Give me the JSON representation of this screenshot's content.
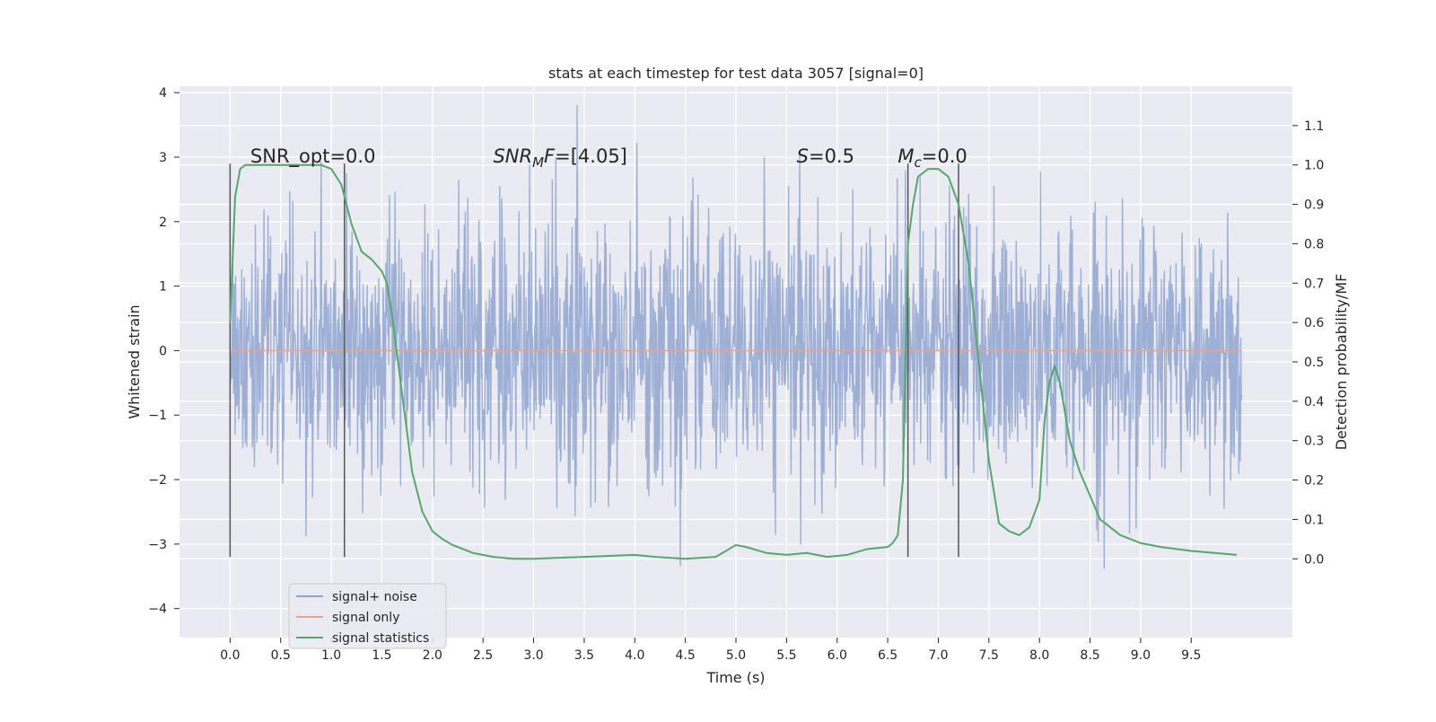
{
  "chart_data": {
    "type": "line",
    "title": "stats at each timestep for test data 3057 [signal=0]",
    "xlabel": "Time (s)",
    "ylabel_left": "Whitened strain",
    "ylabel_right": "Detection probability/MF",
    "xlim": [
      -0.5,
      10.5
    ],
    "ylim_left": [
      -4.45,
      4.1
    ],
    "ylim_right": [
      -0.2,
      1.2
    ],
    "x_ticks": [
      "0.0",
      "0.5",
      "1.0",
      "1.5",
      "2.0",
      "2.5",
      "3.0",
      "3.5",
      "4.0",
      "4.5",
      "5.0",
      "5.5",
      "6.0",
      "6.5",
      "7.0",
      "7.5",
      "8.0",
      "8.5",
      "9.0",
      "9.5"
    ],
    "y_left_ticks": [
      "4",
      "3",
      "2",
      "1",
      "0",
      "−1",
      "−2",
      "−3",
      "−4"
    ],
    "y_right_ticks": [
      "1.1",
      "1.0",
      "0.9",
      "0.8",
      "0.7",
      "0.6",
      "0.5",
      "0.4",
      "0.3",
      "0.2",
      "0.1",
      "0.0"
    ],
    "grid": true,
    "legend_position": "lower-left",
    "annotations": [
      {
        "parts": [
          {
            "t": "SNR_opt=0.0",
            "i": false
          }
        ],
        "x": 0.2,
        "y": 3.0
      },
      {
        "parts": [
          {
            "t": "SNR",
            "i": true
          },
          {
            "t": "M",
            "i": true,
            "sub": true
          },
          {
            "t": "F",
            "i": true
          },
          {
            "t": "=[4.05]",
            "i": false
          }
        ],
        "x": 2.6,
        "y": 3.0
      },
      {
        "parts": [
          {
            "t": "S",
            "i": true
          },
          {
            "t": "=0.5",
            "i": false
          }
        ],
        "x": 5.6,
        "y": 3.0
      },
      {
        "parts": [
          {
            "t": "M",
            "i": true
          },
          {
            "t": "c",
            "i": true,
            "sub": true
          },
          {
            "t": "=0.0",
            "i": false
          }
        ],
        "x": 6.6,
        "y": 3.0
      }
    ],
    "vertical_markers": [
      {
        "x": 0.0,
        "y_range": [
          -3.2,
          2.9
        ]
      },
      {
        "x": 1.13,
        "y_range": [
          -3.2,
          2.9
        ]
      },
      {
        "x": 6.7,
        "y_range": [
          -3.2,
          2.9
        ]
      },
      {
        "x": 7.2,
        "y_range": [
          -3.2,
          2.9
        ]
      }
    ],
    "series": [
      {
        "name": "signal+ noise",
        "axis": "left",
        "color": "#8fa4d0",
        "kind": "noise",
        "x_range": [
          0.0,
          10.0
        ],
        "samples": 2000,
        "std": 1.0
      },
      {
        "name": "signal only",
        "axis": "left",
        "color": "#e6a58c",
        "x": [
          0.0,
          10.0
        ],
        "y": [
          0.0,
          0.0
        ]
      },
      {
        "name": "signal statistics",
        "axis": "right",
        "color": "#55a868",
        "x": [
          0.0,
          0.05,
          0.1,
          0.15,
          0.2,
          0.3,
          0.5,
          0.7,
          0.9,
          1.0,
          1.05,
          1.1,
          1.15,
          1.2,
          1.3,
          1.4,
          1.5,
          1.55,
          1.6,
          1.7,
          1.8,
          1.9,
          2.0,
          2.1,
          2.2,
          2.4,
          2.6,
          2.8,
          3.0,
          3.5,
          4.0,
          4.2,
          4.5,
          4.8,
          5.0,
          5.1,
          5.3,
          5.5,
          5.7,
          5.9,
          6.1,
          6.3,
          6.5,
          6.55,
          6.6,
          6.65,
          6.7,
          6.75,
          6.8,
          6.9,
          7.0,
          7.1,
          7.2,
          7.3,
          7.4,
          7.5,
          7.6,
          7.7,
          7.8,
          7.9,
          8.0,
          8.05,
          8.1,
          8.15,
          8.2,
          8.3,
          8.4,
          8.5,
          8.6,
          8.8,
          9.0,
          9.2,
          9.5,
          9.95
        ],
        "y": [
          0.6,
          0.92,
          0.99,
          1.0,
          1.0,
          1.0,
          1.0,
          1.0,
          1.0,
          0.99,
          0.97,
          0.95,
          0.9,
          0.85,
          0.78,
          0.76,
          0.73,
          0.7,
          0.62,
          0.42,
          0.22,
          0.12,
          0.07,
          0.05,
          0.035,
          0.015,
          0.005,
          0.0,
          0.0,
          0.005,
          0.01,
          0.005,
          0.0,
          0.005,
          0.035,
          0.03,
          0.015,
          0.01,
          0.015,
          0.005,
          0.01,
          0.025,
          0.03,
          0.04,
          0.06,
          0.2,
          0.8,
          0.9,
          0.97,
          0.99,
          0.99,
          0.97,
          0.9,
          0.75,
          0.5,
          0.25,
          0.09,
          0.07,
          0.06,
          0.08,
          0.15,
          0.35,
          0.45,
          0.49,
          0.45,
          0.3,
          0.22,
          0.16,
          0.1,
          0.06,
          0.04,
          0.03,
          0.02,
          0.01
        ]
      }
    ]
  }
}
